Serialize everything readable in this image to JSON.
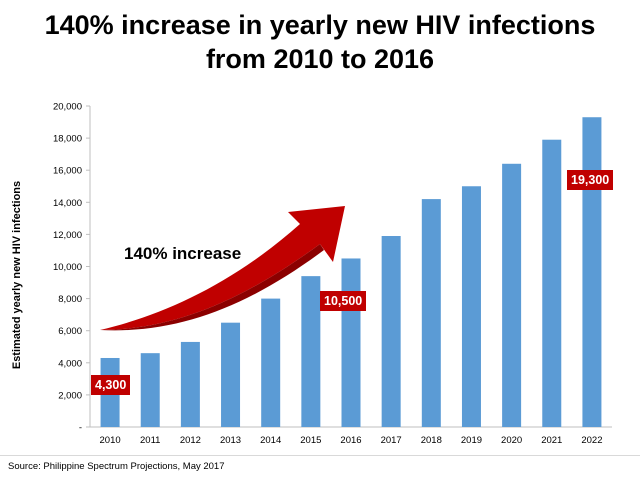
{
  "title_line1": "140% increase in yearly new HIV infections",
  "title_line2": "from 2010 to 2016",
  "source": "Source: Philippine Spectrum Projections, May 2017",
  "annotations": {
    "arrow_label": "140% increase",
    "callout_2010": "4,300",
    "callout_2016": "10,500",
    "callout_2022": "19,300"
  },
  "colors": {
    "bar": "#5b9bd5",
    "callout": "#c00000",
    "arrow": "#c00000"
  },
  "chart_data": {
    "type": "bar",
    "title": "140% increase in yearly new HIV infections from 2010 to 2016",
    "xlabel": "",
    "ylabel": "Estimated yearly new HIV infections",
    "categories": [
      "2010",
      "2011",
      "2012",
      "2013",
      "2014",
      "2015",
      "2016",
      "2017",
      "2018",
      "2019",
      "2020",
      "2021",
      "2022"
    ],
    "values": [
      4300,
      4600,
      5300,
      6500,
      8000,
      9400,
      10500,
      11900,
      14200,
      15000,
      16400,
      17900,
      19300
    ],
    "ylim": [
      0,
      20000
    ],
    "ytick_labels": [
      "-",
      "2,000",
      "4,000",
      "6,000",
      "8,000",
      "10,000",
      "12,000",
      "14,000",
      "16,000",
      "18,000",
      "20,000"
    ],
    "grid": false,
    "legend": "none"
  }
}
